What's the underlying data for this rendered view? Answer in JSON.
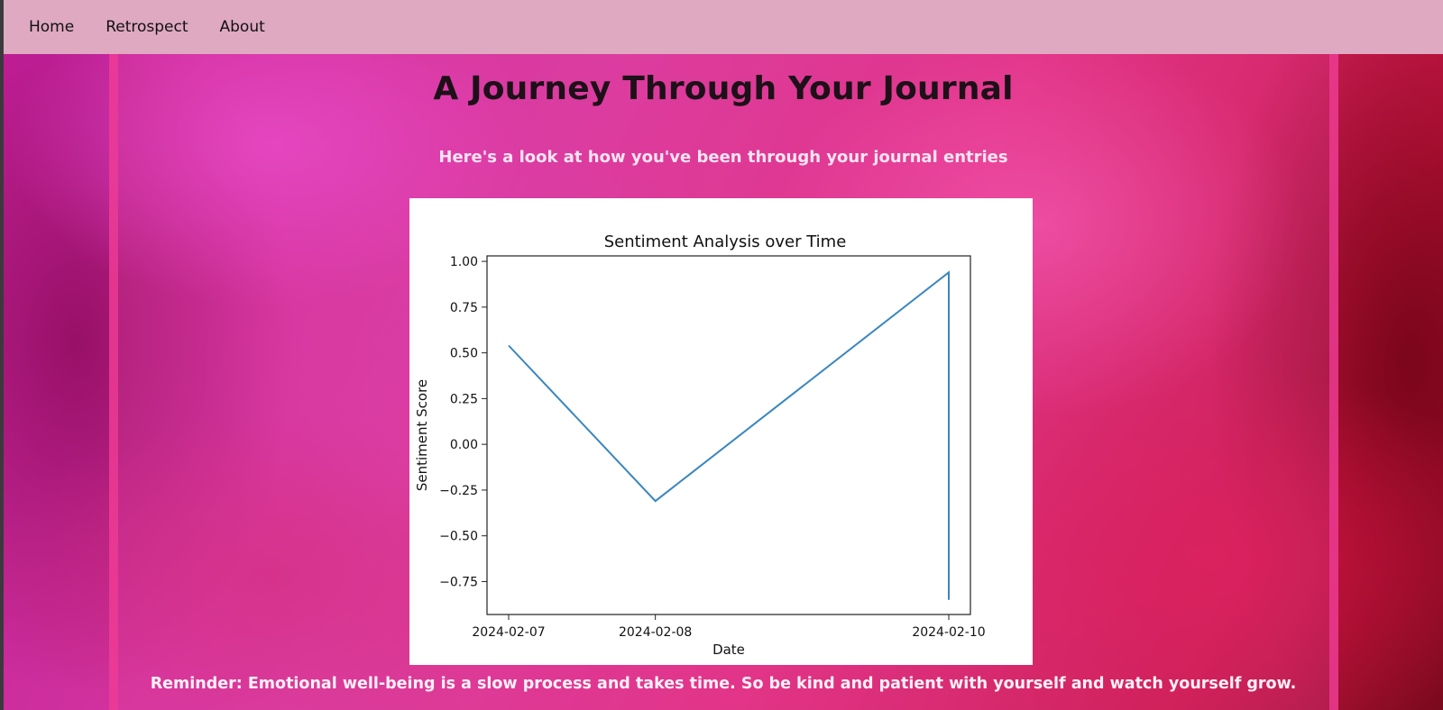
{
  "nav": {
    "items": [
      {
        "label": "Home"
      },
      {
        "label": "Retrospect"
      },
      {
        "label": "About"
      }
    ]
  },
  "main": {
    "title": "A Journey Through Your Journal",
    "subtitle": "Here's a look at how you've been through your journal entries",
    "reminder": "Reminder: Emotional well-being is a slow process and takes time. So be kind and patient with yourself and watch yourself grow."
  },
  "colors": {
    "navbar": "#dfa9c1",
    "line": "#3a86c0"
  },
  "chart_data": {
    "type": "line",
    "title": "Sentiment Analysis over Time",
    "xlabel": "Date",
    "ylabel": "Sentiment Score",
    "x_ticks": [
      "2024-02-07",
      "2024-02-08",
      "2024-02-10"
    ],
    "y_ticks": [
      "1.00",
      "0.75",
      "0.50",
      "0.25",
      "0.00",
      "−0.25",
      "−0.50",
      "−0.75"
    ],
    "ylim": [
      -0.93,
      1.03
    ],
    "series": [
      {
        "points": [
          {
            "x": "2024-02-07",
            "y": 0.54
          },
          {
            "x": "2024-02-08",
            "y": -0.31
          },
          {
            "x": "2024-02-10",
            "y": 0.94
          },
          {
            "x": "2024-02-10",
            "y": -0.85
          }
        ]
      }
    ],
    "grid": false
  }
}
